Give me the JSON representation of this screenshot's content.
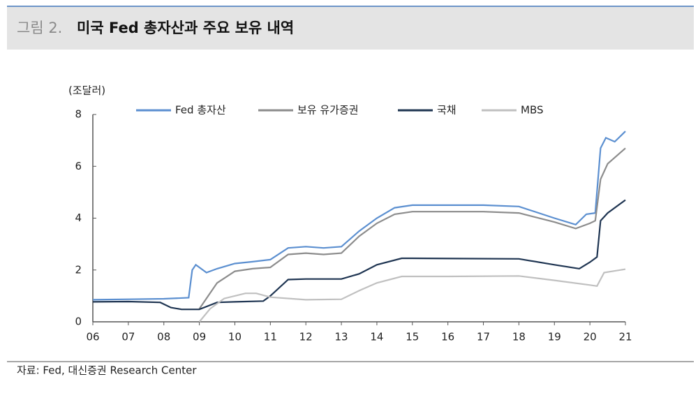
{
  "header": {
    "label": "그림 2.",
    "title": "미국 Fed 총자산과 주요 보유 내역"
  },
  "chart_data": {
    "type": "line",
    "y_unit": "(조달러)",
    "xlim": [
      2006,
      2021
    ],
    "ylim": [
      0,
      8
    ],
    "xticks": [
      {
        "value": 2006,
        "label": "06"
      },
      {
        "value": 2007,
        "label": "07"
      },
      {
        "value": 2008,
        "label": "08"
      },
      {
        "value": 2009,
        "label": "09"
      },
      {
        "value": 2010,
        "label": "10"
      },
      {
        "value": 2011,
        "label": "11"
      },
      {
        "value": 2012,
        "label": "12"
      },
      {
        "value": 2013,
        "label": "13"
      },
      {
        "value": 2014,
        "label": "14"
      },
      {
        "value": 2015,
        "label": "15"
      },
      {
        "value": 2016,
        "label": "16"
      },
      {
        "value": 2017,
        "label": "17"
      },
      {
        "value": 2018,
        "label": "18"
      },
      {
        "value": 2019,
        "label": "19"
      },
      {
        "value": 2020,
        "label": "20"
      },
      {
        "value": 2021,
        "label": "21"
      }
    ],
    "yticks": [
      0,
      2,
      4,
      6,
      8
    ],
    "series": [
      {
        "name": "Fed 총자산",
        "color": "#5b8fd0",
        "x": [
          2006,
          2007,
          2008,
          2008.7,
          2008.8,
          2008.9,
          2009.2,
          2009.5,
          2010,
          2010.5,
          2011,
          2011.5,
          2012,
          2012.5,
          2013,
          2013.5,
          2014,
          2014.5,
          2015,
          2016,
          2017,
          2018,
          2019,
          2019.6,
          2019.9,
          2020.15,
          2020.3,
          2020.45,
          2020.7,
          2021
        ],
        "values": [
          0.85,
          0.87,
          0.89,
          0.93,
          2.0,
          2.2,
          1.9,
          2.05,
          2.25,
          2.32,
          2.4,
          2.85,
          2.9,
          2.85,
          2.9,
          3.5,
          4.0,
          4.4,
          4.5,
          4.5,
          4.5,
          4.45,
          4.0,
          3.75,
          4.15,
          4.2,
          6.7,
          7.1,
          6.95,
          7.35
        ]
      },
      {
        "name": "보유 유가증권",
        "color": "#8c8c8c",
        "x": [
          2009,
          2009.5,
          2010,
          2010.5,
          2011,
          2011.5,
          2012,
          2012.5,
          2013,
          2013.5,
          2014,
          2014.5,
          2015,
          2016,
          2017,
          2018,
          2019,
          2019.6,
          2020,
          2020.15,
          2020.3,
          2020.5,
          2021
        ],
        "values": [
          0.5,
          1.5,
          1.95,
          2.05,
          2.1,
          2.6,
          2.65,
          2.6,
          2.65,
          3.3,
          3.8,
          4.15,
          4.25,
          4.25,
          4.25,
          4.2,
          3.85,
          3.6,
          3.8,
          3.9,
          5.5,
          6.1,
          6.7
        ]
      },
      {
        "name": "국채",
        "color": "#1f3552",
        "x": [
          2006,
          2007,
          2007.9,
          2008.2,
          2008.5,
          2009,
          2009.5,
          2010,
          2010.8,
          2011,
          2011.5,
          2012,
          2013,
          2013.5,
          2014,
          2014.7,
          2015,
          2018,
          2019,
          2019.7,
          2020,
          2020.2,
          2020.3,
          2020.5,
          2021
        ],
        "values": [
          0.77,
          0.78,
          0.75,
          0.55,
          0.48,
          0.48,
          0.75,
          0.77,
          0.8,
          1.0,
          1.63,
          1.65,
          1.65,
          1.85,
          2.2,
          2.45,
          2.45,
          2.43,
          2.2,
          2.05,
          2.3,
          2.5,
          3.9,
          4.2,
          4.7
        ]
      },
      {
        "name": "MBS",
        "color": "#c0c0c0",
        "x": [
          2009,
          2009.3,
          2009.7,
          2010.3,
          2010.6,
          2011,
          2012,
          2013,
          2013.5,
          2014,
          2014.7,
          2016,
          2018,
          2019,
          2020,
          2020.2,
          2020.4,
          2021
        ],
        "values": [
          0,
          0.5,
          0.9,
          1.1,
          1.1,
          0.95,
          0.85,
          0.87,
          1.2,
          1.5,
          1.75,
          1.75,
          1.77,
          1.6,
          1.42,
          1.38,
          1.9,
          2.03
        ]
      }
    ]
  },
  "source": "자료: Fed, 대신증권 Research Center"
}
